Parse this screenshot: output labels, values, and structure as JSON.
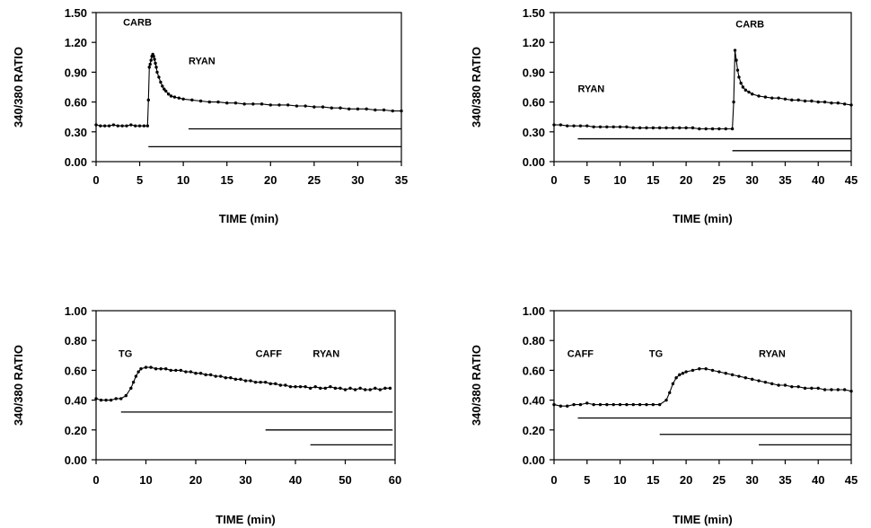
{
  "chart_data": [
    {
      "type": "line",
      "panel": "top-left",
      "xlabel": "TIME (min)",
      "ylabel": "340/380 RATIO",
      "xlim": [
        0,
        35
      ],
      "ylim": [
        0,
        1.5
      ],
      "xticks": [
        0,
        5,
        10,
        15,
        20,
        25,
        30,
        35
      ],
      "yticks": [
        0,
        0.3,
        0.6,
        0.9,
        1.2,
        1.5
      ],
      "ytick_labels": [
        "0.00",
        "0.30",
        "0.60",
        "0.90",
        "1.20",
        "1.50"
      ],
      "series": [
        {
          "x": [
            0,
            0.5,
            1,
            1.5,
            2,
            2.5,
            3,
            3.5,
            4,
            4.5,
            5,
            5.5,
            5.9,
            6.0,
            6.1,
            6.2,
            6.3,
            6.4,
            6.5,
            6.6,
            6.7,
            6.8,
            6.9,
            7.0,
            7.2,
            7.4,
            7.6,
            7.8,
            8.0,
            8.3,
            8.6,
            9.0,
            9.5,
            10,
            11,
            12,
            13,
            14,
            15,
            16,
            17,
            18,
            19,
            20,
            21,
            22,
            23,
            24,
            25,
            26,
            27,
            28,
            29,
            30,
            31,
            32,
            33,
            34,
            35
          ],
          "y": [
            0.37,
            0.36,
            0.36,
            0.36,
            0.37,
            0.36,
            0.36,
            0.36,
            0.37,
            0.36,
            0.36,
            0.36,
            0.36,
            0.62,
            0.95,
            0.98,
            1.02,
            1.06,
            1.08,
            1.06,
            1.03,
            0.99,
            0.95,
            0.9,
            0.85,
            0.8,
            0.76,
            0.73,
            0.71,
            0.68,
            0.66,
            0.65,
            0.64,
            0.63,
            0.62,
            0.61,
            0.6,
            0.6,
            0.59,
            0.59,
            0.58,
            0.58,
            0.58,
            0.57,
            0.57,
            0.57,
            0.56,
            0.56,
            0.55,
            0.55,
            0.54,
            0.54,
            0.53,
            0.53,
            0.53,
            0.52,
            0.52,
            0.51,
            0.51
          ]
        }
      ],
      "annotations": [
        {
          "text": "CARB",
          "x": 3.1,
          "y": 1.37
        },
        {
          "text": "RYAN",
          "x": 10.6,
          "y": 0.98
        }
      ],
      "bars": [
        {
          "x0": 10.6,
          "x1": 35,
          "y": 0.33
        },
        {
          "x0": 6.0,
          "x1": 35,
          "y": 0.15
        }
      ]
    },
    {
      "type": "line",
      "panel": "top-right",
      "xlabel": "TIME (min)",
      "ylabel": "340/380 RATIO",
      "xlim": [
        0,
        45
      ],
      "ylim": [
        0,
        1.5
      ],
      "xticks": [
        0,
        5,
        10,
        15,
        20,
        25,
        30,
        35,
        40,
        45
      ],
      "yticks": [
        0,
        0.3,
        0.6,
        0.9,
        1.2,
        1.5
      ],
      "ytick_labels": [
        "0.00",
        "0.30",
        "0.60",
        "0.90",
        "1.20",
        "1.50"
      ],
      "series": [
        {
          "x": [
            0,
            1,
            2,
            3,
            4,
            5,
            6,
            7,
            8,
            9,
            10,
            11,
            12,
            13,
            14,
            15,
            16,
            17,
            18,
            19,
            20,
            21,
            22,
            23,
            24,
            25,
            26,
            27,
            27.2,
            27.4,
            27.6,
            27.8,
            28.0,
            28.3,
            28.6,
            29.0,
            29.5,
            30,
            31,
            32,
            33,
            34,
            35,
            36,
            37,
            38,
            39,
            40,
            41,
            42,
            43,
            44,
            45
          ],
          "y": [
            0.37,
            0.37,
            0.36,
            0.36,
            0.36,
            0.36,
            0.35,
            0.35,
            0.35,
            0.35,
            0.35,
            0.35,
            0.34,
            0.34,
            0.34,
            0.34,
            0.34,
            0.34,
            0.34,
            0.34,
            0.34,
            0.34,
            0.33,
            0.33,
            0.33,
            0.33,
            0.33,
            0.33,
            0.6,
            1.12,
            1.02,
            0.92,
            0.85,
            0.79,
            0.75,
            0.72,
            0.7,
            0.68,
            0.66,
            0.65,
            0.64,
            0.64,
            0.63,
            0.62,
            0.62,
            0.61,
            0.61,
            0.6,
            0.6,
            0.59,
            0.59,
            0.58,
            0.57
          ]
        }
      ],
      "annotations": [
        {
          "text": "CARB",
          "x": 27.5,
          "y": 1.35
        },
        {
          "text": "RYAN",
          "x": 3.6,
          "y": 0.7
        }
      ],
      "bars": [
        {
          "x0": 3.6,
          "x1": 45,
          "y": 0.23
        },
        {
          "x0": 27.0,
          "x1": 45,
          "y": 0.11
        }
      ]
    },
    {
      "type": "line",
      "panel": "bottom-left",
      "xlabel": "TIME (min)",
      "ylabel": "340/380 RATIO",
      "xlim": [
        0,
        60
      ],
      "ylim": [
        0,
        1.0
      ],
      "xticks": [
        0,
        10,
        20,
        30,
        40,
        50,
        60
      ],
      "yticks": [
        0,
        0.2,
        0.4,
        0.6,
        0.8,
        1.0
      ],
      "ytick_labels": [
        "0.00",
        "0.20",
        "0.40",
        "0.60",
        "0.80",
        "1.00"
      ],
      "series": [
        {
          "x": [
            0,
            1,
            2,
            3,
            4,
            5,
            6,
            7,
            7.5,
            8,
            8.5,
            9,
            10,
            11,
            12,
            13,
            14,
            15,
            16,
            17,
            18,
            19,
            20,
            21,
            22,
            23,
            24,
            25,
            26,
            27,
            28,
            29,
            30,
            31,
            32,
            33,
            34,
            35,
            36,
            37,
            38,
            39,
            40,
            41,
            42,
            43,
            44,
            45,
            46,
            47,
            48,
            49,
            50,
            51,
            52,
            53,
            54,
            55,
            56,
            57,
            58,
            59
          ],
          "y": [
            0.41,
            0.4,
            0.4,
            0.4,
            0.41,
            0.41,
            0.43,
            0.48,
            0.52,
            0.56,
            0.59,
            0.61,
            0.62,
            0.62,
            0.61,
            0.61,
            0.61,
            0.6,
            0.6,
            0.6,
            0.59,
            0.59,
            0.58,
            0.58,
            0.57,
            0.57,
            0.56,
            0.56,
            0.55,
            0.55,
            0.54,
            0.54,
            0.53,
            0.53,
            0.52,
            0.52,
            0.52,
            0.51,
            0.51,
            0.5,
            0.5,
            0.49,
            0.49,
            0.49,
            0.49,
            0.48,
            0.49,
            0.48,
            0.48,
            0.49,
            0.48,
            0.48,
            0.47,
            0.48,
            0.47,
            0.48,
            0.47,
            0.47,
            0.48,
            0.47,
            0.48,
            0.48
          ]
        }
      ],
      "annotations": [
        {
          "text": "TG",
          "x": 4.5,
          "y": 0.69
        },
        {
          "text": "CAFF",
          "x": 32,
          "y": 0.69
        },
        {
          "text": "RYAN",
          "x": 43.5,
          "y": 0.69
        }
      ],
      "bars": [
        {
          "x0": 5,
          "x1": 59.5,
          "y": 0.32
        },
        {
          "x0": 34,
          "x1": 59.5,
          "y": 0.2
        },
        {
          "x0": 43,
          "x1": 59.5,
          "y": 0.1
        }
      ]
    },
    {
      "type": "line",
      "panel": "bottom-right",
      "xlabel": "TIME (min)",
      "ylabel": "340/380 RATIO",
      "xlim": [
        0,
        45
      ],
      "ylim": [
        0,
        1.0
      ],
      "xticks": [
        0,
        5,
        10,
        15,
        20,
        25,
        30,
        35,
        40,
        45
      ],
      "yticks": [
        0,
        0.2,
        0.4,
        0.6,
        0.8,
        1.0
      ],
      "ytick_labels": [
        "0.00",
        "0.20",
        "0.40",
        "0.60",
        "0.80",
        "1.00"
      ],
      "series": [
        {
          "x": [
            0,
            1,
            2,
            3,
            4,
            5,
            6,
            7,
            8,
            9,
            10,
            11,
            12,
            13,
            14,
            15,
            16,
            17,
            17.5,
            18,
            18.5,
            19,
            19.5,
            20,
            21,
            22,
            23,
            24,
            25,
            26,
            27,
            28,
            29,
            30,
            31,
            32,
            33,
            34,
            35,
            36,
            37,
            38,
            39,
            40,
            41,
            42,
            43,
            44,
            45
          ],
          "y": [
            0.37,
            0.36,
            0.36,
            0.37,
            0.37,
            0.38,
            0.37,
            0.37,
            0.37,
            0.37,
            0.37,
            0.37,
            0.37,
            0.37,
            0.37,
            0.37,
            0.37,
            0.4,
            0.45,
            0.51,
            0.55,
            0.57,
            0.58,
            0.59,
            0.6,
            0.61,
            0.61,
            0.6,
            0.59,
            0.58,
            0.57,
            0.56,
            0.55,
            0.54,
            0.53,
            0.52,
            0.51,
            0.5,
            0.5,
            0.49,
            0.49,
            0.48,
            0.48,
            0.48,
            0.47,
            0.47,
            0.47,
            0.47,
            0.46
          ]
        }
      ],
      "annotations": [
        {
          "text": "CAFF",
          "x": 2.0,
          "y": 0.69
        },
        {
          "text": "TG",
          "x": 14.4,
          "y": 0.69
        },
        {
          "text": "RYAN",
          "x": 31.0,
          "y": 0.69
        }
      ],
      "bars": [
        {
          "x0": 3.6,
          "x1": 45,
          "y": 0.28
        },
        {
          "x0": 16.0,
          "x1": 45,
          "y": 0.17
        },
        {
          "x0": 31.0,
          "x1": 45,
          "y": 0.1
        }
      ]
    }
  ]
}
